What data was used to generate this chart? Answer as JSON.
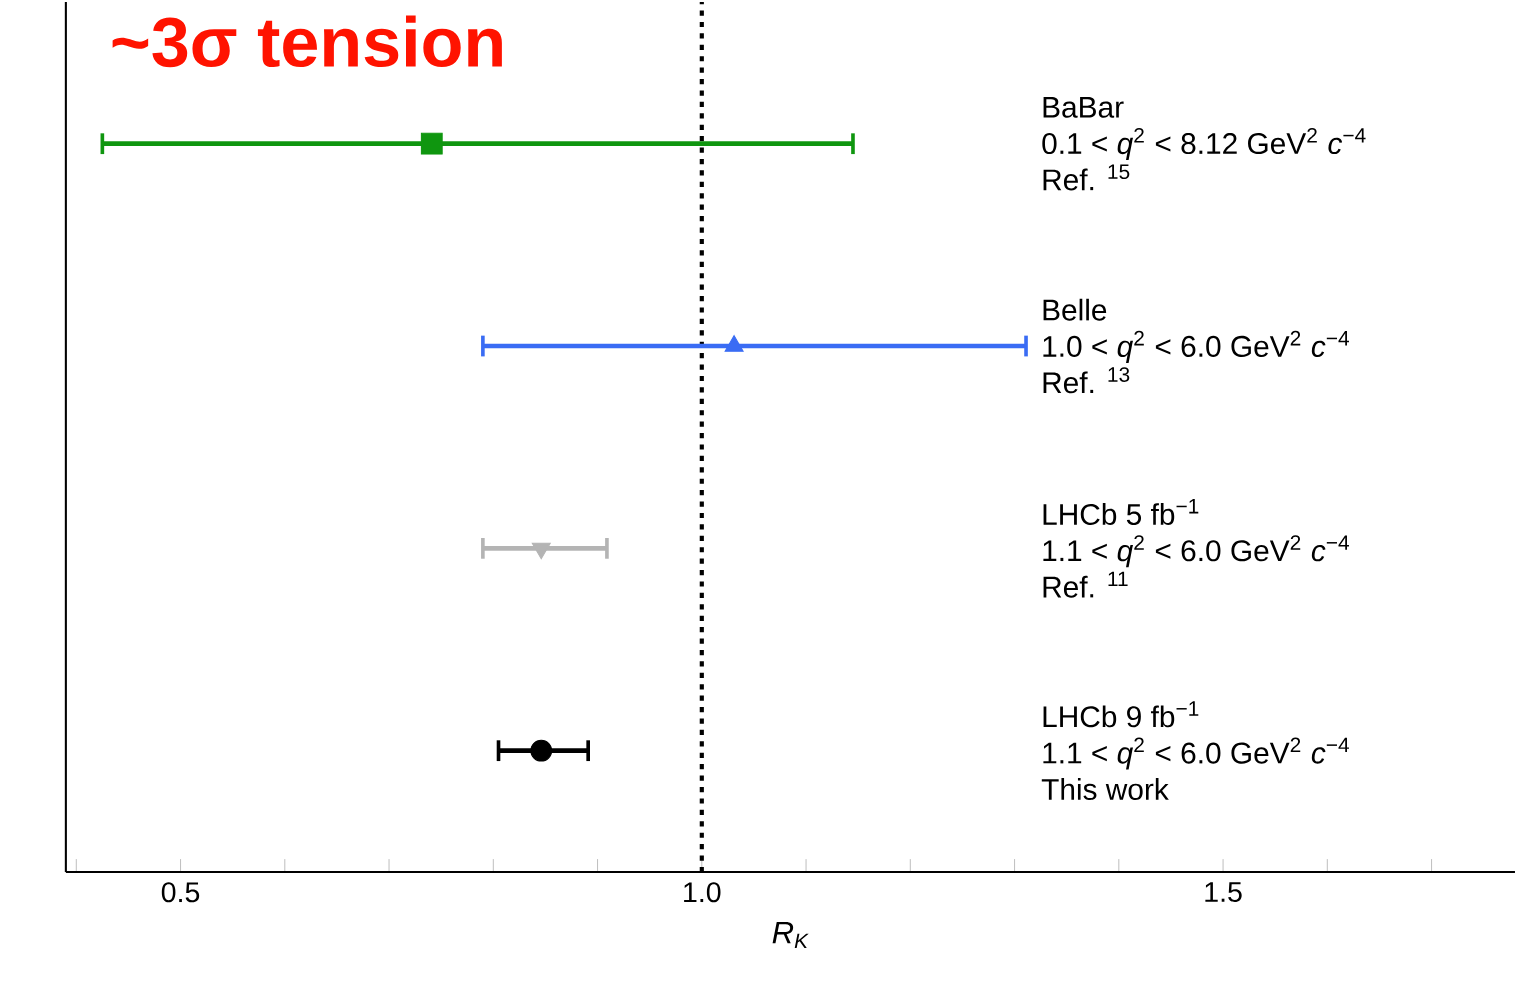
{
  "chart_data": {
    "type": "scatter",
    "orientation": "horizontal",
    "xlabel": "R$_{K}$",
    "categories": [
      null,
      null,
      null,
      null
    ],
    "xlim": [
      0.39,
      1.78
    ],
    "xticks": [
      {
        "value": 0.4,
        "label": null
      },
      {
        "value": 0.5,
        "label": "0.5"
      },
      {
        "value": 0.6,
        "label": null
      },
      {
        "value": 0.7,
        "label": null
      },
      {
        "value": 0.8,
        "label": null
      },
      {
        "value": 0.9,
        "label": null
      },
      {
        "value": 1.0,
        "label": "1.0"
      },
      {
        "value": 1.1,
        "label": null
      },
      {
        "value": 1.2,
        "label": null
      },
      {
        "value": 1.3,
        "label": null
      },
      {
        "value": 1.4,
        "label": null
      },
      {
        "value": 1.5,
        "label": "1.5"
      },
      {
        "value": 1.6,
        "label": null
      },
      {
        "value": 1.7,
        "label": null
      }
    ],
    "series": [
      {
        "name": "BaBar",
        "color": "#0f960f",
        "marker": "square",
        "values": [
          0.741,
          null,
          null,
          null
        ],
        "errors": [
          [
            0.425,
            1.145
          ],
          null,
          null,
          null
        ]
      },
      {
        "name": "Belle",
        "color": "#3a6cf4",
        "marker": "triangle",
        "values": [
          null,
          1.031,
          null,
          null
        ],
        "errors": [
          null,
          [
            0.79,
            1.311
          ],
          null,
          null
        ]
      },
      {
        "name": "LHCb 5 fb$^{−1}$",
        "color": "#b4b4b4",
        "marker": "triangle down",
        "values": [
          null,
          null,
          0.846,
          null
        ],
        "errors": [
          null,
          null,
          [
            0.79,
            0.909
          ],
          null
        ]
      },
      {
        "name": "LHCb 9 fb$^{−1}$",
        "color": "#000000",
        "marker": "circle",
        "values": [
          null,
          null,
          null,
          0.846
        ],
        "errors": [
          null,
          null,
          null,
          [
            0.805,
            0.891
          ]
        ]
      }
    ],
    "ref_lines": [
      {
        "axis": "x",
        "value": 1.0,
        "color": "#000000",
        "line_style": "dotted"
      }
    ],
    "annotations": [
      "~3σ tension",
      "0.1 < *q*$^{2}$ < 8.12 GeV$^{2}$ *c*$^{−4}$",
      "Ref. $^{15}$",
      "1.0 < *q*$^{2}$ < 6.0 GeV$^{2}$ *c*$^{−4}$",
      "Ref. $^{13}$",
      "1.1 < *q*$^{2}$ < 6.0 GeV$^{2}$ *c*$^{−4}$",
      "Ref. $^{11}$",
      "1.1 < *q*$^{2}$ < 6.0 GeV$^{2}$ *c*$^{−4}$",
      "This work"
    ]
  }
}
